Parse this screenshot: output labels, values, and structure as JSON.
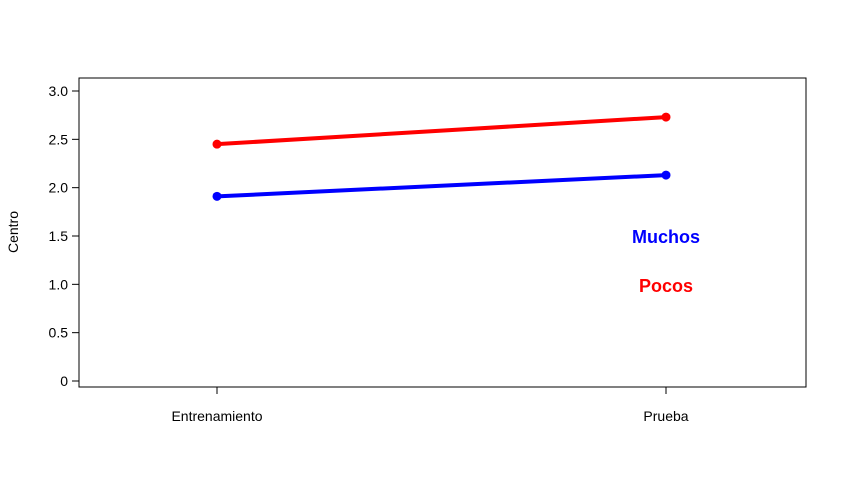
{
  "chart_data": {
    "type": "line",
    "title": "",
    "xlabel": "",
    "ylabel": "Centro",
    "categories": [
      "Entrenamiento",
      "Prueba"
    ],
    "ylim": [
      0,
      3.0
    ],
    "yticks": [
      "0",
      "0.5",
      "1.0",
      "1.5",
      "2.0",
      "2.5",
      "3.0"
    ],
    "grid": false,
    "legend_position": "right",
    "series": [
      {
        "name": "Muchos",
        "values": [
          1.91,
          2.13
        ],
        "color": "#0000FF"
      },
      {
        "name": "Pocos",
        "values": [
          2.45,
          2.73
        ],
        "color": "#FF0000"
      }
    ]
  }
}
